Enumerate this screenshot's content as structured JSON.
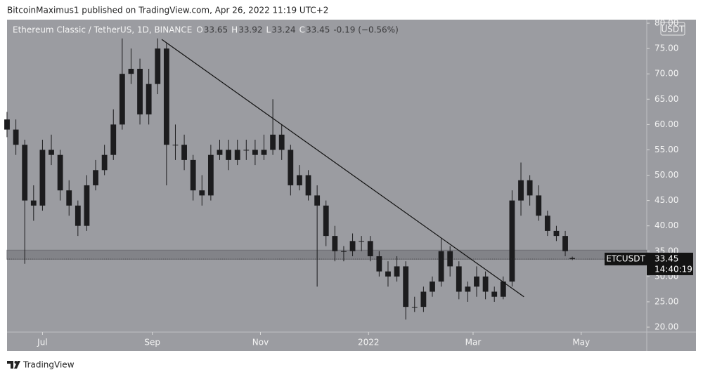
{
  "chart_data": {
    "type": "candlestick",
    "publisher": "BitcoinMaximus1 published on TradingView.com, Apr 26, 2022 11:19 UTC+2",
    "title": "Ethereum Classic / TetherUS, 1D, BINANCE",
    "ohlc_labels": [
      "O",
      "H",
      "L",
      "C"
    ],
    "ohlc_values": [
      33.65,
      33.92,
      33.24,
      33.45
    ],
    "change": "-0.19 (−0.56%)",
    "currency": "USDT",
    "symbol_label": "ETCUSDT",
    "last_price": 33.45,
    "countdown": "14:40:19",
    "brand": "TradingView",
    "color": "#1c1c1e",
    "x": [
      0,
      5,
      10,
      15,
      20,
      25,
      30,
      35,
      40,
      45,
      50,
      55,
      60,
      65,
      70,
      75,
      80,
      85,
      90,
      95,
      100,
      105,
      110,
      115,
      120,
      125,
      130,
      135,
      140,
      145,
      150,
      155,
      160,
      165,
      170,
      175,
      180,
      185,
      190,
      195,
      200,
      205,
      210,
      215,
      220,
      225,
      230,
      235,
      240,
      245,
      250,
      255,
      260,
      265,
      270,
      275,
      280,
      285,
      290,
      295,
      300,
      305,
      310,
      315,
      319
    ],
    "open": [
      61,
      59,
      56,
      45,
      44,
      55,
      54,
      47,
      44,
      40,
      48,
      51,
      54,
      60,
      70,
      71,
      62,
      68,
      75,
      56,
      56,
      53,
      47,
      46,
      54,
      55,
      53,
      55,
      55,
      54,
      55,
      58,
      55,
      48,
      50,
      46,
      44,
      38,
      35,
      35,
      37,
      37,
      34,
      31,
      30,
      32,
      24,
      24,
      27,
      29,
      35,
      32,
      27,
      28,
      30,
      27,
      26,
      29,
      45,
      49,
      46,
      42,
      39,
      38,
      33.65
    ],
    "high": [
      62.5,
      61,
      57,
      48,
      57,
      58,
      55,
      49,
      45,
      50,
      53,
      56,
      63,
      77,
      75,
      73,
      71,
      77,
      76,
      60,
      58,
      54,
      50,
      56,
      57,
      57,
      57,
      57,
      57,
      58,
      65,
      60,
      56,
      52,
      51,
      48,
      45,
      40,
      36,
      38.5,
      38,
      38,
      35,
      33,
      34,
      33,
      26,
      28,
      30,
      37.5,
      36,
      33,
      29,
      32,
      31,
      28,
      30,
      47,
      52.5,
      50,
      48,
      43,
      40,
      39,
      33.92
    ],
    "low": [
      57.5,
      54,
      32.5,
      41,
      43,
      52,
      45,
      42,
      38,
      39,
      47,
      50,
      53,
      59,
      68,
      60,
      60,
      66,
      48,
      53,
      51,
      45,
      44,
      45,
      53,
      51,
      52,
      53,
      52,
      53,
      54,
      53,
      46,
      47,
      45,
      28,
      36,
      33,
      33,
      34,
      35,
      33,
      30,
      28,
      29,
      21.5,
      23,
      23,
      26,
      28,
      30,
      25.5,
      25,
      26,
      25.5,
      25,
      25.5,
      28,
      42,
      44,
      41,
      38,
      37,
      34,
      33.24
    ],
    "close": [
      59,
      56,
      45,
      44,
      55,
      54,
      47,
      44,
      40,
      48,
      51,
      54,
      60,
      70,
      71,
      62,
      68,
      75,
      56,
      56,
      53,
      47,
      46,
      54,
      55,
      53,
      55,
      55,
      54,
      55,
      58,
      55,
      48,
      50,
      46,
      44,
      38,
      35,
      35,
      37,
      37,
      34,
      31,
      30,
      32,
      24,
      24,
      27,
      29,
      35,
      32,
      27,
      28,
      30,
      27,
      26,
      29,
      45,
      49,
      46,
      42,
      39,
      38,
      35,
      33.45
    ],
    "trendline": {
      "x": [
        87.3,
        291.7
      ],
      "y": [
        76.8,
        26.0
      ]
    },
    "support_zone": [
      33.4,
      35.2
    ],
    "xlim": [
      0,
      361
    ],
    "xticks": [
      {
        "value": 20,
        "label": "Jul"
      },
      {
        "value": 82,
        "label": "Sep"
      },
      {
        "value": 143,
        "label": "Nov"
      },
      {
        "value": 204,
        "label": "2022"
      },
      {
        "value": 263,
        "label": "Mar"
      },
      {
        "value": 324,
        "label": "May"
      }
    ],
    "ylim": [
      19.03,
      80.7
    ],
    "yticks": [
      {
        "value": 20,
        "label": "20.00"
      },
      {
        "value": 25,
        "label": "25.00"
      },
      {
        "value": 30,
        "label": "30.00"
      },
      {
        "value": 35,
        "label": "35.00"
      },
      {
        "value": 40,
        "label": "40.00"
      },
      {
        "value": 45,
        "label": "45.00"
      },
      {
        "value": 50,
        "label": "50.00"
      },
      {
        "value": 55,
        "label": "55.00"
      },
      {
        "value": 60,
        "label": "60.00"
      },
      {
        "value": 65,
        "label": "65.00"
      },
      {
        "value": 70,
        "label": "70.00"
      },
      {
        "value": 75,
        "label": "75.00"
      },
      {
        "value": 80,
        "label": "80.00"
      }
    ]
  }
}
